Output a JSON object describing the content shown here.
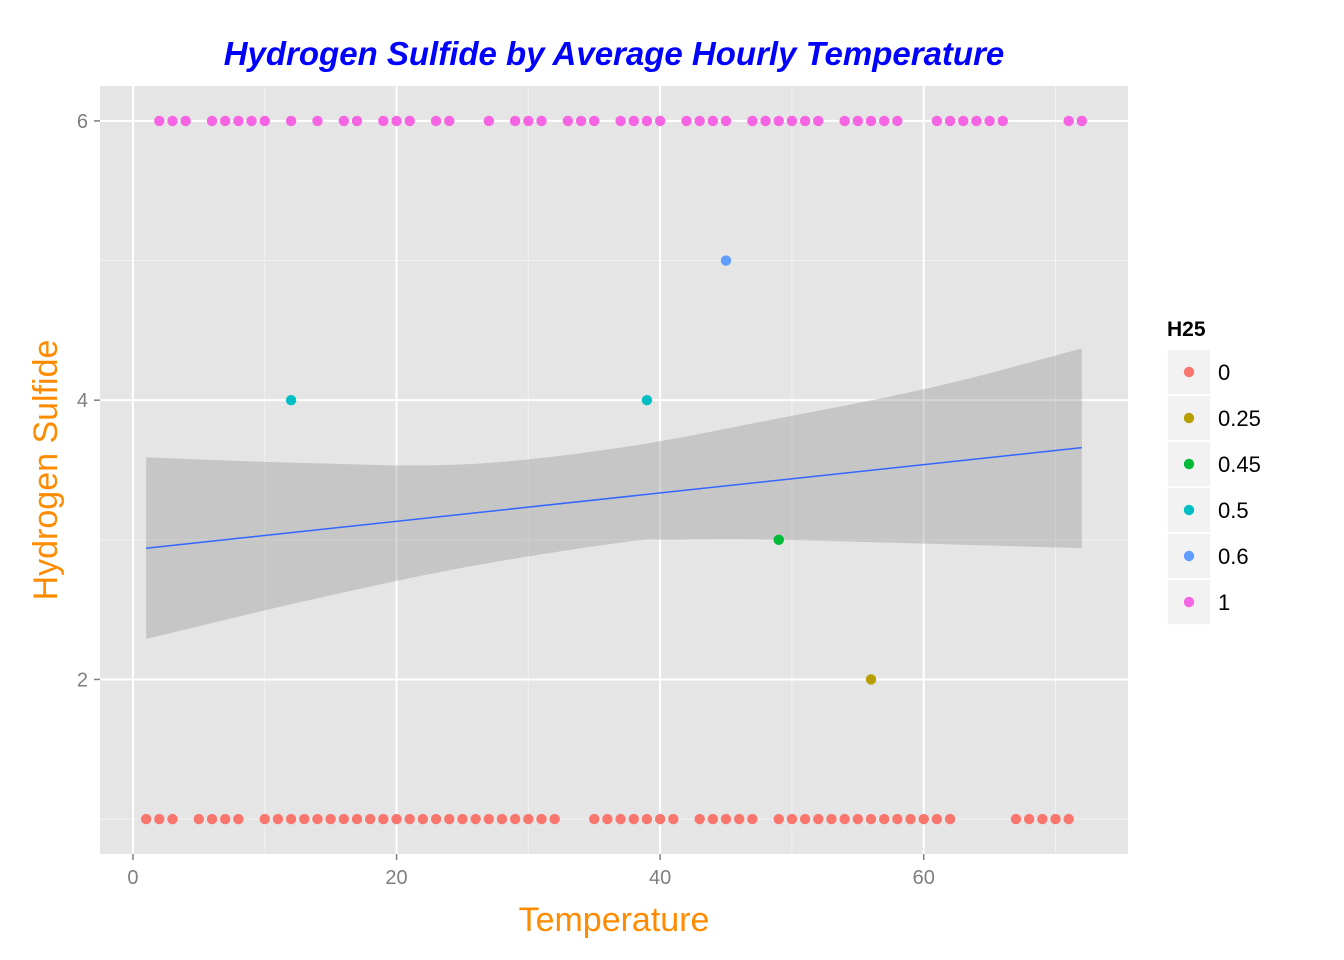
{
  "chart_data": {
    "type": "scatter",
    "title": "Hydrogen Sulfide by Average Hourly Temperature",
    "xlabel": "Temperature",
    "ylabel": "Hydrogen Sulfide",
    "xlim": [
      -2.5,
      75.5
    ],
    "ylim": [
      0.75,
      6.25
    ],
    "x_ticks": [
      0,
      20,
      40,
      60
    ],
    "y_ticks": [
      2,
      4,
      6
    ],
    "grid": true,
    "legend": {
      "title": "H25",
      "position": "right",
      "entries": [
        {
          "label": "0",
          "color": "#F8766D"
        },
        {
          "label": "0.25",
          "color": "#B79F00"
        },
        {
          "label": "0.45",
          "color": "#00BA38"
        },
        {
          "label": "0.5",
          "color": "#00BFC4"
        },
        {
          "label": "0.6",
          "color": "#619CFF"
        },
        {
          "label": "1",
          "color": "#F564E3"
        }
      ]
    },
    "series": [
      {
        "name": "0",
        "color": "#F8766D",
        "y": 1,
        "x": [
          1,
          2,
          3,
          5,
          6,
          7,
          8,
          10,
          11,
          12,
          13,
          14,
          15,
          16,
          17,
          18,
          19,
          20,
          21,
          22,
          23,
          24,
          25,
          26,
          27,
          28,
          29,
          30,
          31,
          32,
          35,
          36,
          37,
          38,
          39,
          40,
          41,
          43,
          44,
          45,
          46,
          47,
          49,
          50,
          51,
          52,
          53,
          54,
          55,
          56,
          57,
          58,
          59,
          60,
          61,
          62,
          67,
          68,
          69,
          70,
          71
        ]
      },
      {
        "name": "0.25",
        "color": "#B79F00",
        "y": 2,
        "x": [
          56
        ]
      },
      {
        "name": "0.45",
        "color": "#00BA38",
        "y": 3,
        "x": [
          49
        ]
      },
      {
        "name": "0.5",
        "color": "#00BFC4",
        "y": 4,
        "x": [
          12,
          39
        ]
      },
      {
        "name": "0.6",
        "color": "#619CFF",
        "y": 5,
        "x": [
          45
        ]
      },
      {
        "name": "1",
        "color": "#F564E3",
        "y": 6,
        "x": [
          2,
          3,
          4,
          6,
          7,
          8,
          9,
          10,
          12,
          14,
          16,
          17,
          19,
          20,
          21,
          23,
          24,
          27,
          29,
          30,
          31,
          33,
          34,
          35,
          37,
          38,
          39,
          40,
          42,
          43,
          44,
          45,
          47,
          48,
          49,
          50,
          51,
          52,
          54,
          55,
          56,
          57,
          58,
          61,
          62,
          63,
          64,
          65,
          66,
          71,
          72
        ]
      }
    ],
    "trend": {
      "method": "lm",
      "line": [
        [
          1,
          2.94
        ],
        [
          72,
          3.66
        ]
      ],
      "ci_lower": [
        [
          1,
          2.29
        ],
        [
          13,
          2.56
        ],
        [
          25,
          2.8
        ],
        [
          37,
          2.98
        ],
        [
          41,
          3.0
        ],
        [
          49,
          3.0
        ],
        [
          61,
          2.97
        ],
        [
          72,
          2.94
        ]
      ],
      "ci_upper": [
        [
          1,
          3.59
        ],
        [
          13,
          3.55
        ],
        [
          25,
          3.54
        ],
        [
          37,
          3.66
        ],
        [
          49,
          3.87
        ],
        [
          61,
          4.1
        ],
        [
          72,
          4.37
        ]
      ],
      "line_color": "#3366FF",
      "band_color": "#999999"
    },
    "colors": {
      "title": "#0000FF",
      "axis_title": "#FF8C00",
      "panel": "#E5E5E5",
      "grid": "#FFFFFF"
    }
  }
}
